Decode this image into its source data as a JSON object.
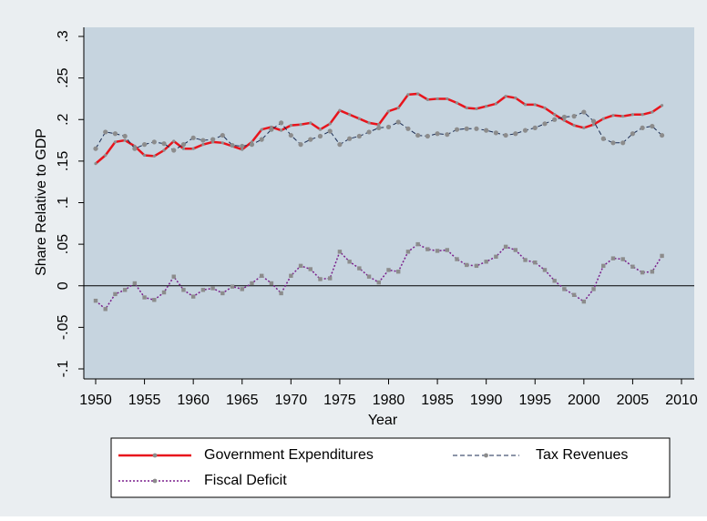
{
  "chart_data": {
    "type": "line",
    "xlabel": "Year",
    "ylabel": "Share Relative to GDP",
    "x": [
      1950,
      1951,
      1952,
      1953,
      1954,
      1955,
      1956,
      1957,
      1958,
      1959,
      1960,
      1961,
      1962,
      1963,
      1964,
      1965,
      1966,
      1967,
      1968,
      1969,
      1970,
      1971,
      1972,
      1973,
      1974,
      1975,
      1976,
      1977,
      1978,
      1979,
      1980,
      1981,
      1982,
      1983,
      1984,
      1985,
      1986,
      1987,
      1988,
      1989,
      1990,
      1991,
      1992,
      1993,
      1994,
      1995,
      1996,
      1997,
      1998,
      1999,
      2000,
      2001,
      2002,
      2003,
      2004,
      2005,
      2006,
      2007,
      2008
    ],
    "series": [
      {
        "name": "Government Expenditures",
        "color": "#e8141c",
        "linestyle": "solid",
        "values": [
          0.147,
          0.157,
          0.173,
          0.175,
          0.168,
          0.157,
          0.156,
          0.163,
          0.174,
          0.165,
          0.165,
          0.17,
          0.173,
          0.172,
          0.168,
          0.164,
          0.173,
          0.188,
          0.191,
          0.187,
          0.193,
          0.194,
          0.196,
          0.188,
          0.195,
          0.211,
          0.206,
          0.201,
          0.196,
          0.194,
          0.21,
          0.214,
          0.23,
          0.231,
          0.224,
          0.225,
          0.225,
          0.22,
          0.214,
          0.213,
          0.216,
          0.219,
          0.228,
          0.226,
          0.218,
          0.218,
          0.214,
          0.206,
          0.199,
          0.193,
          0.19,
          0.194,
          0.201,
          0.205,
          0.204,
          0.206,
          0.206,
          0.209,
          0.217
        ]
      },
      {
        "name": "Tax Revenues",
        "color": "#1a2b52",
        "linestyle": "dash",
        "values": [
          0.165,
          0.185,
          0.183,
          0.18,
          0.165,
          0.17,
          0.173,
          0.171,
          0.163,
          0.17,
          0.178,
          0.175,
          0.176,
          0.181,
          0.169,
          0.168,
          0.17,
          0.176,
          0.188,
          0.196,
          0.181,
          0.17,
          0.176,
          0.18,
          0.186,
          0.17,
          0.177,
          0.18,
          0.185,
          0.19,
          0.191,
          0.197,
          0.189,
          0.181,
          0.18,
          0.183,
          0.182,
          0.188,
          0.189,
          0.189,
          0.187,
          0.184,
          0.181,
          0.183,
          0.187,
          0.19,
          0.195,
          0.2,
          0.203,
          0.204,
          0.209,
          0.198,
          0.177,
          0.172,
          0.172,
          0.183,
          0.19,
          0.192,
          0.181
        ]
      },
      {
        "name": "Fiscal Deficit",
        "color": "#7a1f8c",
        "linestyle": "dot",
        "values": [
          -0.018,
          -0.028,
          -0.01,
          -0.005,
          0.003,
          -0.014,
          -0.017,
          -0.008,
          0.011,
          -0.005,
          -0.013,
          -0.005,
          -0.003,
          -0.009,
          -0.001,
          -0.004,
          0.003,
          0.012,
          0.003,
          -0.009,
          0.012,
          0.024,
          0.02,
          0.008,
          0.009,
          0.041,
          0.029,
          0.021,
          0.011,
          0.004,
          0.019,
          0.017,
          0.041,
          0.05,
          0.044,
          0.042,
          0.043,
          0.032,
          0.025,
          0.024,
          0.029,
          0.035,
          0.047,
          0.043,
          0.031,
          0.028,
          0.019,
          0.006,
          -0.004,
          -0.011,
          -0.019,
          -0.004,
          0.024,
          0.033,
          0.032,
          0.023,
          0.016,
          0.017,
          0.036
        ]
      }
    ],
    "marker_color": "#8c8c8c",
    "xlim": [
      1950,
      2010
    ],
    "xticks": [
      1950,
      1955,
      1960,
      1965,
      1970,
      1975,
      1980,
      1985,
      1990,
      1995,
      2000,
      2005,
      2010
    ],
    "ylim": [
      -0.1,
      0.3
    ],
    "yticks": [
      {
        "value": -0.1,
        "label": "-.1"
      },
      {
        "value": -0.05,
        "label": "-.05"
      },
      0,
      {
        "value": 0.05,
        "label": ".05"
      },
      {
        "value": 0.1,
        "label": ".1"
      },
      {
        "value": 0.15,
        "label": ".15"
      },
      {
        "value": 0.2,
        "label": ".2"
      },
      {
        "value": 0.25,
        "label": ".25"
      },
      {
        "value": 0.3,
        "label": ".3"
      }
    ],
    "zero_line": true
  }
}
